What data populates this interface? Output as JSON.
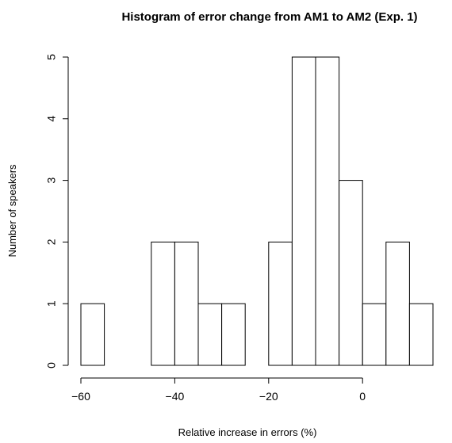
{
  "chart_data": {
    "type": "bar",
    "title": "Histogram of error change from AM1 to AM2 (Exp. 1)",
    "xlabel": "Relative increase in errors (%)",
    "ylabel": "Number of speakers",
    "bins": [
      {
        "from": -60,
        "to": -55,
        "count": 1
      },
      {
        "from": -55,
        "to": -50,
        "count": 0
      },
      {
        "from": -50,
        "to": -45,
        "count": 0
      },
      {
        "from": -45,
        "to": -40,
        "count": 2
      },
      {
        "from": -40,
        "to": -35,
        "count": 2
      },
      {
        "from": -35,
        "to": -30,
        "count": 1
      },
      {
        "from": -30,
        "to": -25,
        "count": 1
      },
      {
        "from": -25,
        "to": -20,
        "count": 0
      },
      {
        "from": -20,
        "to": -15,
        "count": 2
      },
      {
        "from": -15,
        "to": -10,
        "count": 5
      },
      {
        "from": -10,
        "to": -5,
        "count": 5
      },
      {
        "from": -5,
        "to": 0,
        "count": 3
      },
      {
        "from": 0,
        "to": 5,
        "count": 1
      },
      {
        "from": 5,
        "to": 10,
        "count": 2
      },
      {
        "from": 10,
        "to": 15,
        "count": 1
      }
    ],
    "xlim": [
      -60,
      15
    ],
    "ylim": [
      0,
      5
    ],
    "x_ticks": [
      -60,
      -40,
      -20,
      0
    ],
    "x_tick_labels": [
      "−60",
      "−40",
      "−20",
      "0"
    ],
    "y_ticks": [
      0,
      1,
      2,
      3,
      4,
      5
    ],
    "y_tick_labels": [
      "0",
      "1",
      "2",
      "3",
      "4",
      "5"
    ],
    "grid": false,
    "legend": "none",
    "bar_fill": "#ffffff",
    "bar_stroke": "#000000"
  }
}
